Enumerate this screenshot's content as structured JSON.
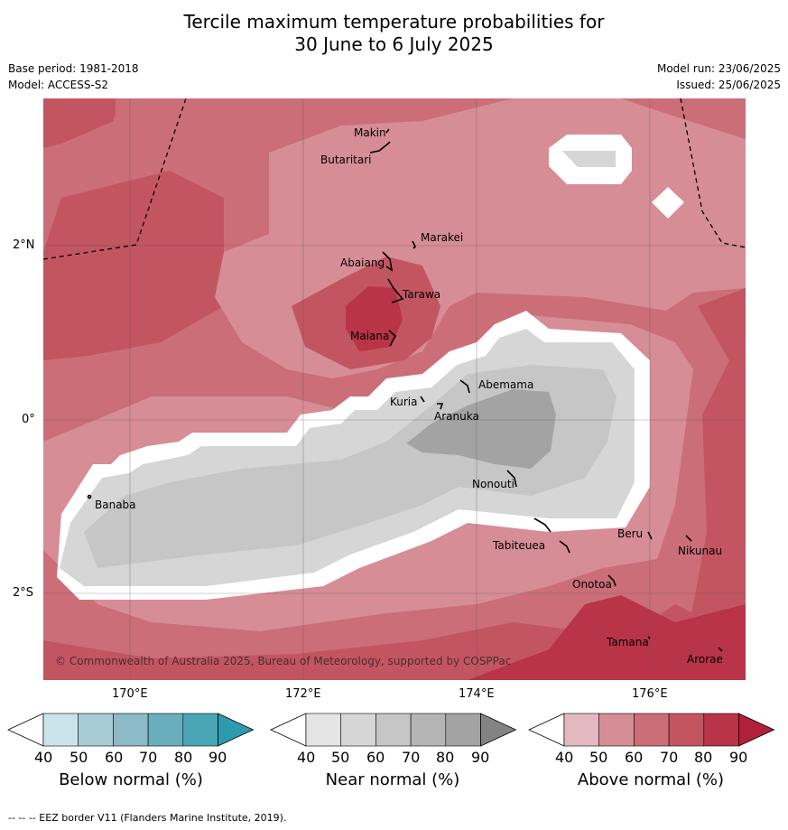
{
  "title_line1": "Tercile maximum temperature probabilities for",
  "title_line2": "30 June to 6 July 2025",
  "meta": {
    "base_period": "Base period: 1981-2018",
    "model": "Model: ACCESS-S2",
    "model_run": "Model run: 23/06/2025",
    "issued": "Issued: 25/06/2025"
  },
  "axes": {
    "lat_labels": [
      "2°N",
      "0°",
      "2°S"
    ],
    "lon_labels": [
      "170°E",
      "172°E",
      "174°E",
      "176°E"
    ]
  },
  "places": [
    "Makin",
    "Butaritari",
    "Marakei",
    "Abaiang",
    "Tarawa",
    "Maiana",
    "Abemama",
    "Kuria",
    "Aranuka",
    "Banaba",
    "Nonouti",
    "Beru",
    "Nikunau",
    "Tabiteuea",
    "Onotoa",
    "Tamana",
    "Arorae"
  ],
  "copyright": "© Commonwealth of Australia 2025, Bureau of Meteorology, supported by COSPPac",
  "colorbars": [
    {
      "title": "Below normal (%)",
      "ticks": [
        "40",
        "50",
        "60",
        "70",
        "80",
        "90"
      ],
      "colors": [
        "#ffffff",
        "#cbe3ea",
        "#a7ccd5",
        "#8cbac6",
        "#6aaebd",
        "#49a6b5",
        "#2e9aad"
      ]
    },
    {
      "title": "Near normal (%)",
      "ticks": [
        "40",
        "50",
        "60",
        "70",
        "80",
        "90"
      ],
      "colors": [
        "#ffffff",
        "#e4e4e4",
        "#d6d6d6",
        "#c6c6c6",
        "#b5b5b5",
        "#a3a3a3",
        "#838383"
      ]
    },
    {
      "title": "Above normal (%)",
      "ticks": [
        "40",
        "50",
        "60",
        "70",
        "80",
        "90"
      ],
      "colors": [
        "#ffffff",
        "#e3b8bf",
        "#d68d96",
        "#cb6e78",
        "#c35561",
        "#b93447",
        "#b1203a"
      ]
    }
  ],
  "footnote": "--  --  -- EEZ border V11 (Flanders Marine Institute, 2019)."
}
